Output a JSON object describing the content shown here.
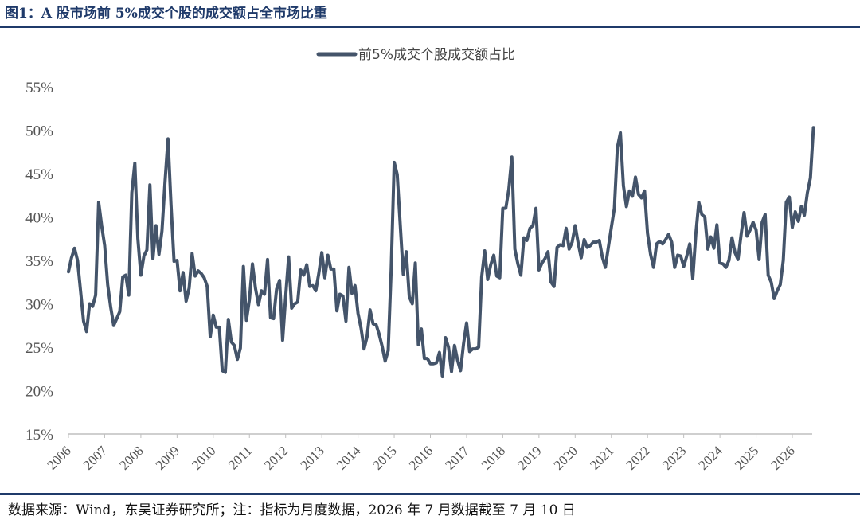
{
  "figure": {
    "title": "图1：A 股市场前 5%成交个股的成交额占全市场比重",
    "source": "数据来源：Wind，东吴证券研究所；注：指标为月度数据，2026 年 7 月数据截至 7 月 10 日"
  },
  "colors": {
    "line": "#44546a",
    "rule": "#1f3a6a",
    "axis": "#bfbfbf"
  },
  "chart_data": {
    "type": "line",
    "title": "",
    "xlabel": "",
    "ylabel": "",
    "ylim": [
      0.15,
      0.55
    ],
    "y_ticks": [
      "15%",
      "20%",
      "25%",
      "30%",
      "35%",
      "40%",
      "45%",
      "50%",
      "55%"
    ],
    "x_ticks": [
      "2006",
      "2007",
      "2008",
      "2009",
      "2010",
      "2011",
      "2012",
      "2013",
      "2014",
      "2015",
      "2016",
      "2017",
      "2018",
      "2019",
      "2020",
      "2021",
      "2022",
      "2023",
      "2024",
      "2025",
      "2026"
    ],
    "grid": false,
    "legend": "top-center",
    "x_start": "2006-01",
    "x_end": "2026-07",
    "frequency": "monthly",
    "series": [
      {
        "name": "前5%成交个股成交额占比",
        "values": [
          0.337,
          0.353,
          0.364,
          0.35,
          0.315,
          0.28,
          0.268,
          0.3,
          0.297,
          0.31,
          0.417,
          0.39,
          0.367,
          0.322,
          0.296,
          0.275,
          0.283,
          0.291,
          0.331,
          0.333,
          0.31,
          0.428,
          0.462,
          0.375,
          0.333,
          0.355,
          0.362,
          0.437,
          0.352,
          0.39,
          0.357,
          0.384,
          0.44,
          0.49,
          0.414,
          0.349,
          0.35,
          0.315,
          0.336,
          0.303,
          0.318,
          0.358,
          0.332,
          0.338,
          0.335,
          0.33,
          0.32,
          0.262,
          0.287,
          0.273,
          0.273,
          0.223,
          0.221,
          0.282,
          0.256,
          0.252,
          0.236,
          0.249,
          0.343,
          0.281,
          0.305,
          0.346,
          0.318,
          0.299,
          0.315,
          0.311,
          0.351,
          0.284,
          0.283,
          0.317,
          0.327,
          0.258,
          0.308,
          0.354,
          0.295,
          0.3,
          0.302,
          0.339,
          0.333,
          0.345,
          0.32,
          0.321,
          0.315,
          0.335,
          0.359,
          0.33,
          0.356,
          0.34,
          0.34,
          0.292,
          0.311,
          0.309,
          0.28,
          0.342,
          0.312,
          0.321,
          0.289,
          0.272,
          0.248,
          0.262,
          0.293,
          0.277,
          0.276,
          0.265,
          0.251,
          0.234,
          0.246,
          0.34,
          0.463,
          0.449,
          0.391,
          0.334,
          0.36,
          0.308,
          0.3,
          0.347,
          0.253,
          0.271,
          0.237,
          0.237,
          0.231,
          0.231,
          0.232,
          0.244,
          0.216,
          0.261,
          0.25,
          0.222,
          0.252,
          0.235,
          0.223,
          0.254,
          0.278,
          0.245,
          0.248,
          0.248,
          0.25,
          0.331,
          0.361,
          0.328,
          0.345,
          0.356,
          0.332,
          0.33,
          0.41,
          0.41,
          0.432,
          0.469,
          0.363,
          0.346,
          0.333,
          0.376,
          0.373,
          0.387,
          0.39,
          0.41,
          0.339,
          0.347,
          0.352,
          0.36,
          0.325,
          0.32,
          0.365,
          0.368,
          0.367,
          0.387,
          0.363,
          0.371,
          0.39,
          0.37,
          0.353,
          0.374,
          0.365,
          0.367,
          0.371,
          0.371,
          0.373,
          0.354,
          0.342,
          0.365,
          0.388,
          0.41,
          0.48,
          0.497,
          0.436,
          0.412,
          0.43,
          0.424,
          0.446,
          0.426,
          0.422,
          0.43,
          0.381,
          0.357,
          0.342,
          0.369,
          0.372,
          0.369,
          0.374,
          0.38,
          0.371,
          0.342,
          0.356,
          0.355,
          0.343,
          0.355,
          0.369,
          0.329,
          0.38,
          0.417,
          0.403,
          0.4,
          0.363,
          0.377,
          0.364,
          0.391,
          0.347,
          0.346,
          0.342,
          0.35,
          0.376,
          0.359,
          0.351,
          0.379,
          0.405,
          0.378,
          0.385,
          0.394,
          0.385,
          0.351,
          0.394,
          0.403,
          0.333,
          0.325,
          0.306,
          0.315,
          0.322,
          0.35,
          0.417,
          0.423,
          0.388,
          0.406,
          0.395,
          0.412,
          0.402,
          0.428,
          0.445,
          0.503
        ]
      }
    ]
  }
}
